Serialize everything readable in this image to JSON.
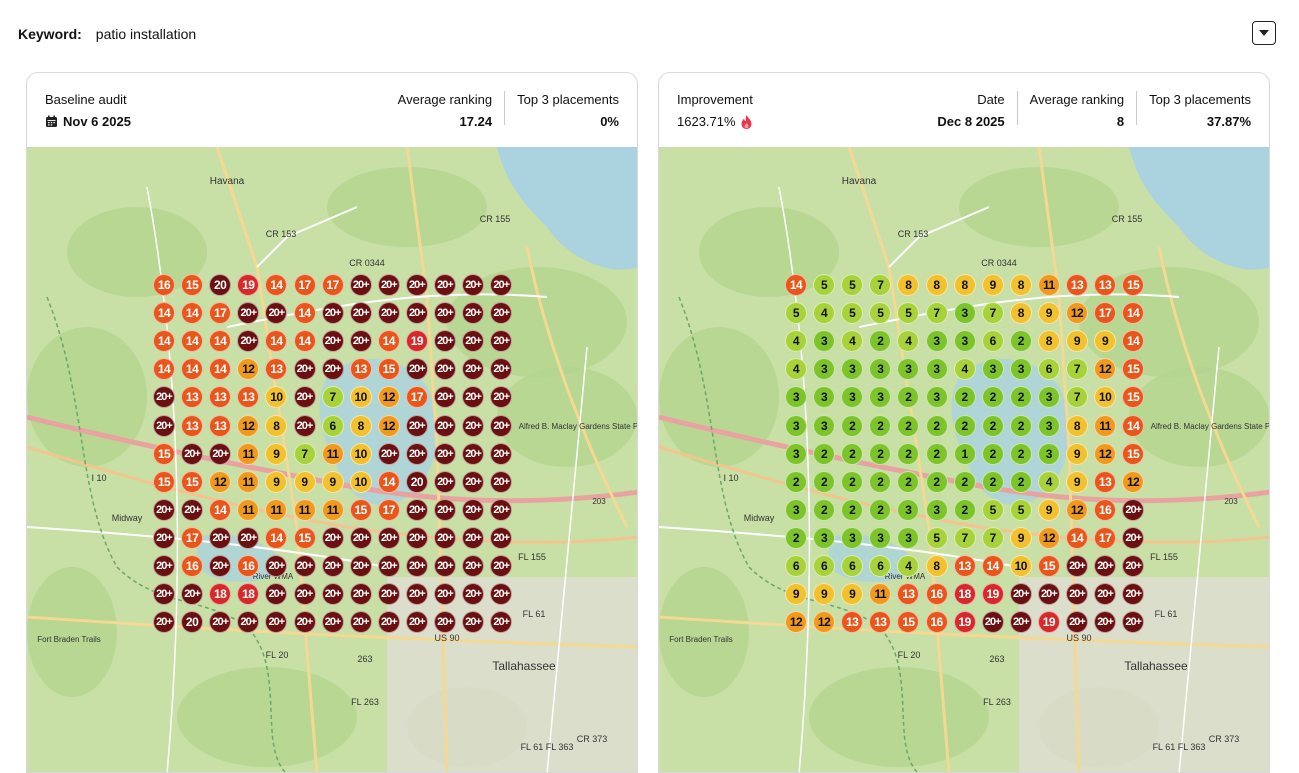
{
  "keyword": {
    "label": "Keyword:",
    "value": "patio installation"
  },
  "colors": {
    "green": "#7cc42a",
    "lime": "#a8d23a",
    "yellow": "#f2c12e",
    "orange": "#ef9a1e",
    "red_orange": "#e8561b",
    "red": "#d62a2a",
    "dark": "#6b1010"
  },
  "baseline": {
    "title": "Baseline audit",
    "date": "Nov 6 2025",
    "avg_label": "Average ranking",
    "avg_value": "17.24",
    "top3_label": "Top 3 placements",
    "top3_value": "0%"
  },
  "current": {
    "improvement_label": "Improvement",
    "improvement_value": "1623.71%",
    "date_label": "Date",
    "date_value": "Dec 8 2025",
    "avg_label": "Average ranking",
    "avg_value": "8",
    "top3_label": "Top 3 placements",
    "top3_value": "37.87%"
  },
  "map_labels": [
    "Havana",
    "CR 155",
    "CR 153",
    "CR 0344",
    "I 10",
    "Midway",
    "Alfred B. Maclay Gardens State Park",
    "FL 155",
    "FL 61",
    "US 90",
    "FL 20",
    "263",
    "Tallahassee",
    "FL 263",
    "CR 373",
    "FL 61 FL 363",
    "Fort Braden Trails",
    "203",
    "River WMA"
  ],
  "grid_left": [
    [
      "16",
      "15",
      "20",
      "19",
      "14",
      "17",
      "17",
      "20+",
      "20+",
      "20+",
      "20+",
      "20+",
      "20+"
    ],
    [
      "14",
      "14",
      "17",
      "20+",
      "20+",
      "14",
      "20+",
      "20+",
      "20+",
      "20+",
      "20+",
      "20+",
      "20+"
    ],
    [
      "14",
      "14",
      "14",
      "20+",
      "14",
      "14",
      "20+",
      "20+",
      "14",
      "19",
      "20+",
      "20+",
      "20+"
    ],
    [
      "14",
      "14",
      "14",
      "12",
      "13",
      "20+",
      "20+",
      "13",
      "15",
      "20+",
      "20+",
      "20+",
      "20+"
    ],
    [
      "20+",
      "13",
      "13",
      "13",
      "10",
      "20+",
      "7",
      "10",
      "12",
      "17",
      "20+",
      "20+",
      "20+"
    ],
    [
      "20+",
      "13",
      "13",
      "12",
      "8",
      "20+",
      "6",
      "8",
      "12",
      "20+",
      "20+",
      "20+",
      "20+"
    ],
    [
      "15",
      "20+",
      "20+",
      "11",
      "9",
      "7",
      "11",
      "10",
      "20+",
      "20+",
      "20+",
      "20+",
      "20+"
    ],
    [
      "15",
      "15",
      "12",
      "11",
      "9",
      "9",
      "9",
      "10",
      "14",
      "20",
      "20+",
      "20+",
      "20+"
    ],
    [
      "20+",
      "20+",
      "14",
      "11",
      "11",
      "11",
      "11",
      "15",
      "17",
      "20+",
      "20+",
      "20+",
      "20+"
    ],
    [
      "20+",
      "17",
      "20+",
      "20+",
      "14",
      "15",
      "20+",
      "20+",
      "20+",
      "20+",
      "20+",
      "20+",
      "20+"
    ],
    [
      "20+",
      "16",
      "20+",
      "16",
      "20+",
      "20+",
      "20+",
      "20+",
      "20+",
      "20+",
      "20+",
      "20+",
      "20+"
    ],
    [
      "20+",
      "20+",
      "18",
      "18",
      "20+",
      "20+",
      "20+",
      "20+",
      "20+",
      "20+",
      "20+",
      "20+",
      "20+"
    ],
    [
      "20+",
      "20",
      "20+",
      "20+",
      "20+",
      "20+",
      "20+",
      "20+",
      "20+",
      "20+",
      "20+",
      "20+",
      "20+"
    ]
  ],
  "grid_right": [
    [
      "14",
      "5",
      "5",
      "7",
      "8",
      "8",
      "8",
      "9",
      "8",
      "11",
      "13",
      "13",
      "15"
    ],
    [
      "5",
      "4",
      "5",
      "5",
      "5",
      "7",
      "3",
      "7",
      "8",
      "9",
      "12",
      "17",
      "14"
    ],
    [
      "4",
      "3",
      "4",
      "2",
      "4",
      "3",
      "3",
      "6",
      "2",
      "8",
      "9",
      "9",
      "14"
    ],
    [
      "4",
      "3",
      "3",
      "3",
      "3",
      "3",
      "4",
      "3",
      "3",
      "6",
      "7",
      "12",
      "15"
    ],
    [
      "3",
      "3",
      "3",
      "3",
      "2",
      "3",
      "2",
      "2",
      "2",
      "3",
      "7",
      "10",
      "15"
    ],
    [
      "3",
      "3",
      "2",
      "2",
      "2",
      "2",
      "2",
      "2",
      "2",
      "3",
      "8",
      "11",
      "14"
    ],
    [
      "3",
      "2",
      "2",
      "2",
      "2",
      "2",
      "1",
      "2",
      "2",
      "3",
      "9",
      "12",
      "15"
    ],
    [
      "2",
      "2",
      "2",
      "2",
      "2",
      "2",
      "2",
      "2",
      "2",
      "4",
      "9",
      "13",
      "12"
    ],
    [
      "3",
      "2",
      "2",
      "2",
      "3",
      "3",
      "2",
      "5",
      "5",
      "9",
      "12",
      "16",
      "20+"
    ],
    [
      "2",
      "3",
      "3",
      "3",
      "3",
      "5",
      "7",
      "7",
      "9",
      "12",
      "14",
      "17",
      "20+"
    ],
    [
      "6",
      "6",
      "6",
      "6",
      "4",
      "8",
      "13",
      "14",
      "10",
      "15",
      "20+",
      "20+",
      "20+"
    ],
    [
      "9",
      "9",
      "9",
      "11",
      "13",
      "16",
      "18",
      "19",
      "20+",
      "20+",
      "20+",
      "20+",
      "20+"
    ],
    [
      "12",
      "12",
      "13",
      "13",
      "15",
      "16",
      "19",
      "20+",
      "20+",
      "19",
      "20+",
      "20+",
      "20+"
    ]
  ]
}
